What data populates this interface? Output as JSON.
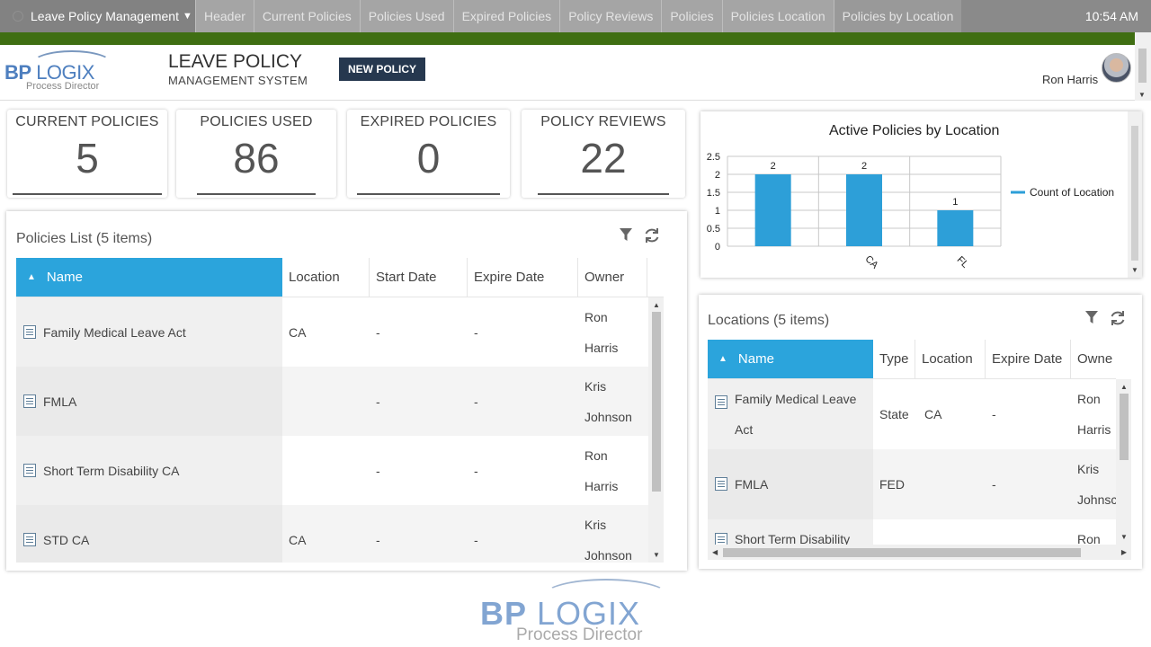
{
  "topnav": {
    "menu_label": "Leave Policy Management",
    "tabs": [
      "Header",
      "Current Policies",
      "Policies Used",
      "Expired Policies",
      "Policy Reviews",
      "Policies",
      "Policies Location",
      "Policies by Location"
    ],
    "clock": "10:54 AM"
  },
  "header": {
    "logo_bp": "BP",
    "logo_logix": "LOGIX",
    "logo_pd": "Process Director",
    "title": "LEAVE POLICY",
    "subtitle": "MANAGEMENT SYSTEM",
    "new_policy": "NEW POLICY",
    "user": "Ron Harris"
  },
  "stats": [
    {
      "label": "CURRENT POLICIES",
      "value": "5"
    },
    {
      "label": "POLICIES USED",
      "value": "86"
    },
    {
      "label": "EXPIRED POLICIES",
      "value": "0"
    },
    {
      "label": "POLICY REVIEWS",
      "value": "22"
    }
  ],
  "policies": {
    "title": "Policies List (5 items)",
    "columns": [
      "Name",
      "Location",
      "Start Date",
      "Expire Date",
      "Owner"
    ],
    "rows": [
      {
        "name": "Family Medical Leave Act",
        "location": "CA",
        "start": "-",
        "expire": "-",
        "owner": "Ron\nHarris"
      },
      {
        "name": "FMLA",
        "location": "",
        "start": "-",
        "expire": "-",
        "owner": "Kris\nJohnson"
      },
      {
        "name": "Short Term Disability CA",
        "location": "",
        "start": "-",
        "expire": "-",
        "owner": "Ron\nHarris"
      },
      {
        "name": "STD CA",
        "location": "CA",
        "start": "-",
        "expire": "-",
        "owner": "Kris\nJohnson"
      }
    ]
  },
  "locations": {
    "title": "Locations (5 items)",
    "columns": [
      "Name",
      "Type",
      "Location",
      "Expire Date",
      "Owne"
    ],
    "rows": [
      {
        "name": "Family Medical Leave\nAct",
        "type": "State",
        "location": "CA",
        "expire": "-",
        "owner": "Ron\nHarris"
      },
      {
        "name": "FMLA",
        "type": "FED",
        "location": "",
        "expire": "-",
        "owner": "Kris\nJohnsc"
      },
      {
        "name": "Short Term Disability",
        "type": "",
        "location": "",
        "expire": "",
        "owner": "Ron"
      }
    ]
  },
  "chart_data": {
    "type": "bar",
    "title": "Active Policies by Location",
    "categories": [
      "",
      "CA",
      "FL"
    ],
    "series": [
      {
        "name": "Count of Location",
        "values": [
          2,
          2,
          1
        ]
      }
    ],
    "ylim": [
      0,
      2.5
    ],
    "yticks": [
      "0",
      "0.5",
      "1",
      "1.5",
      "2",
      "2.5"
    ],
    "legend": "right",
    "color": "#2d9fd8"
  },
  "footer": {
    "logo_bp": "BP",
    "logo_logix": "LOGIX",
    "logo_pd": "Process Director"
  }
}
